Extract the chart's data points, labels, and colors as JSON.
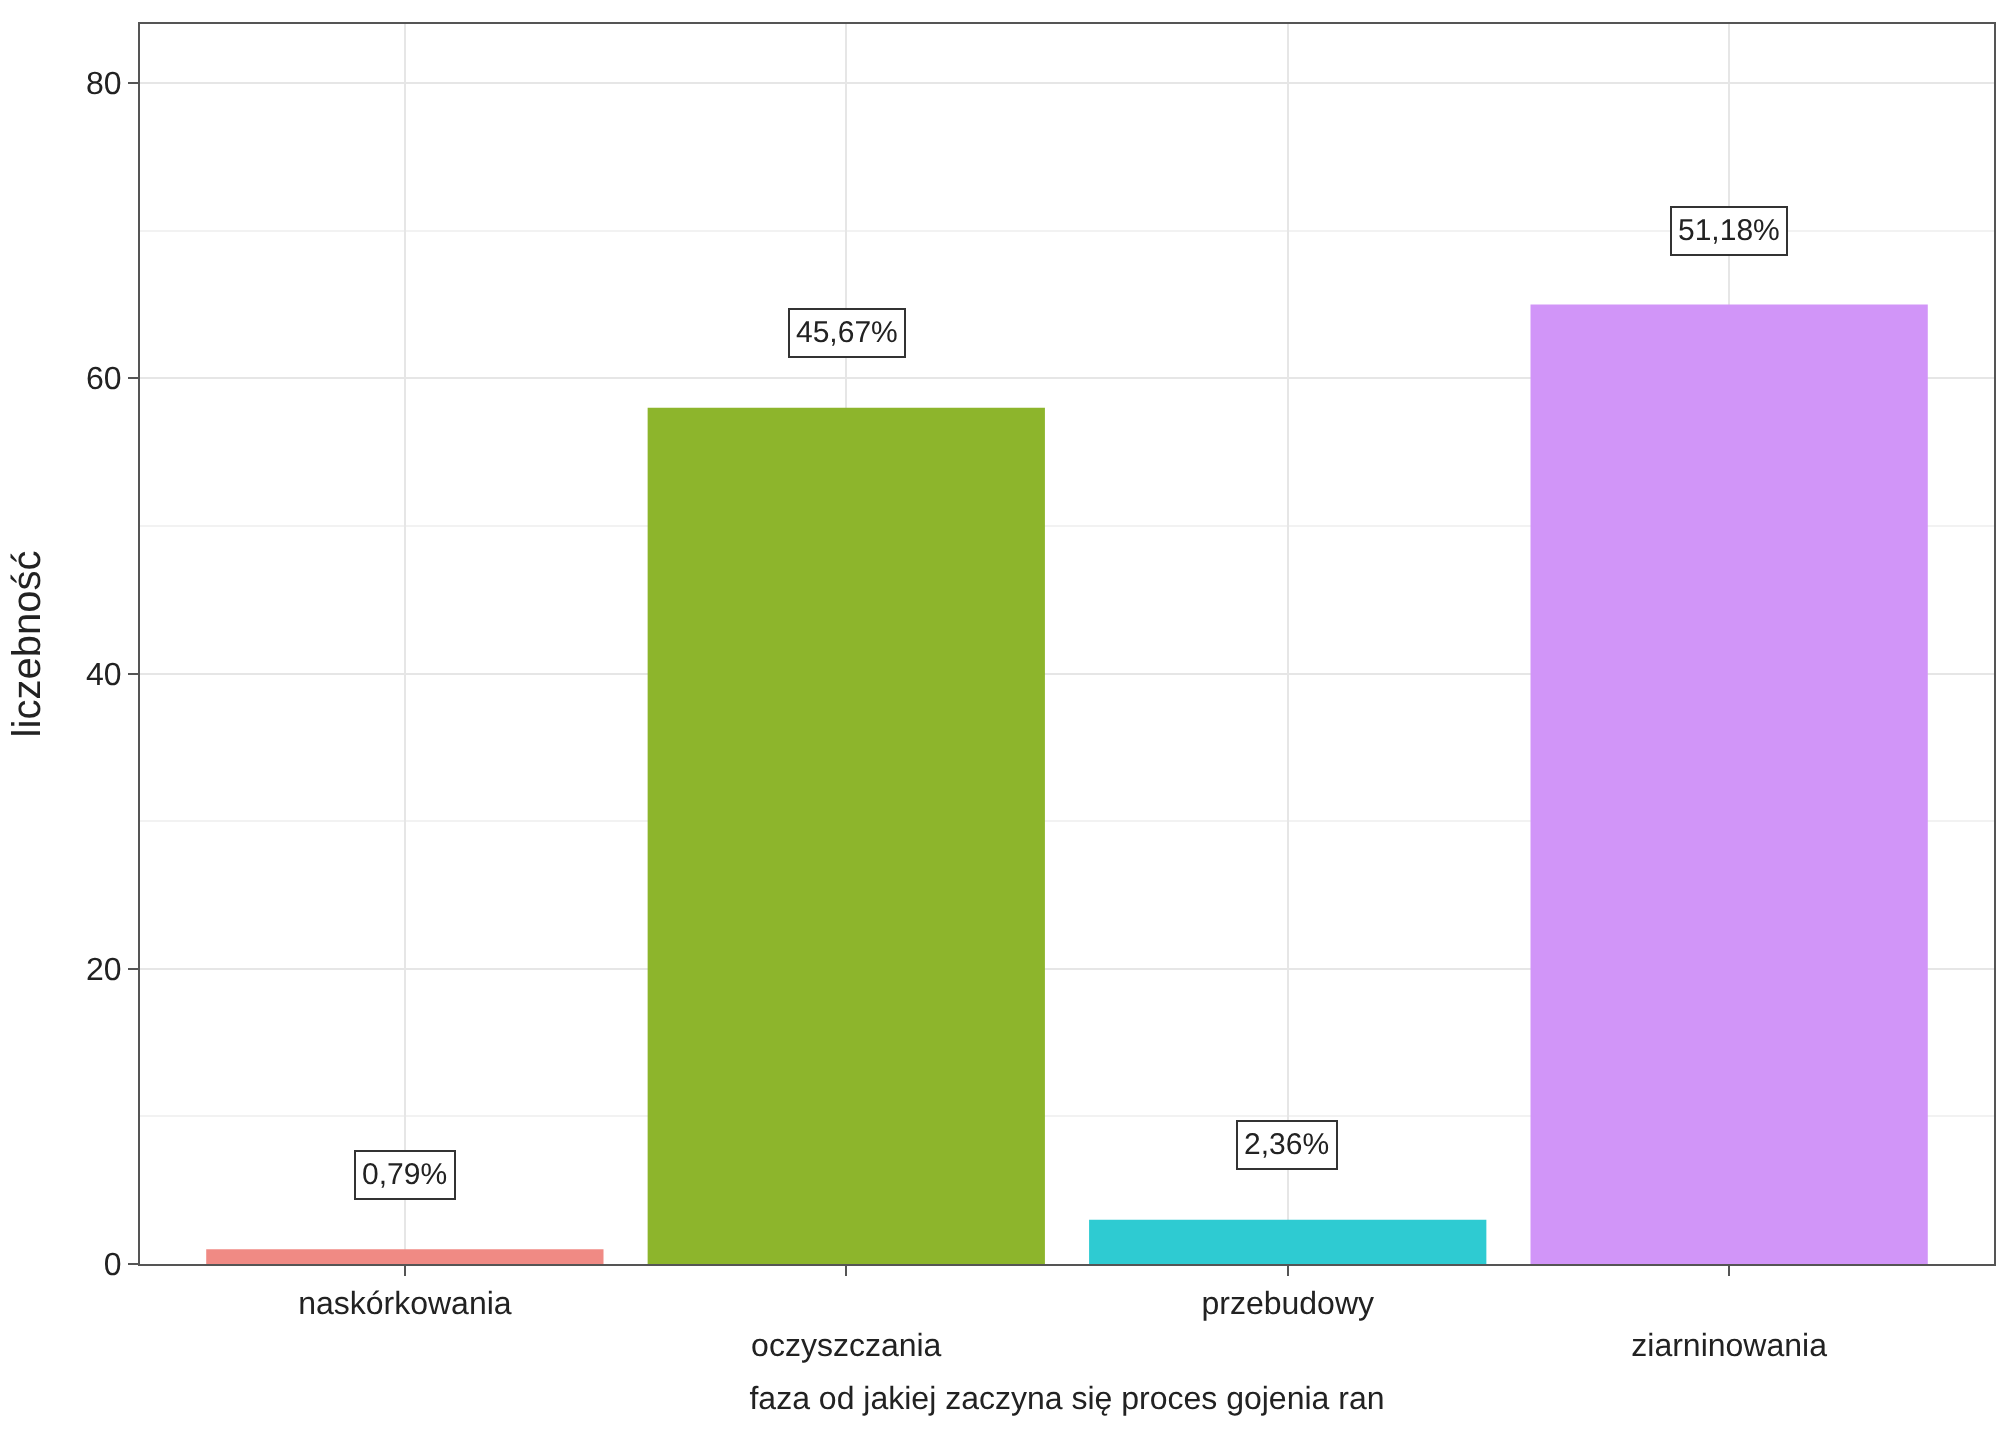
{
  "chart_data": {
    "type": "bar",
    "xlabel": "faza od jakiej zaczyna się proces gojenia ran",
    "ylabel": "liczebność",
    "categories": [
      "naskórkowania",
      "oczyszczania",
      "przebudowy",
      "ziarninowania"
    ],
    "values": [
      1,
      58,
      3,
      65
    ],
    "colors": [
      "#f08a84",
      "#8db52c",
      "#2ecbd2",
      "#d195f8"
    ],
    "annotations": [
      {
        "text": "0,79%",
        "x": "naskórkowania",
        "y": 1
      },
      {
        "text": "45,67%",
        "x": "oczyszczania",
        "y": 58
      },
      {
        "text": "2,36%",
        "x": "przebudowy",
        "y": 3
      },
      {
        "text": "51,18%",
        "x": "ziarninowania",
        "y": 65
      }
    ],
    "ylim": [
      0,
      84
    ],
    "yticks": [
      0,
      20,
      40,
      60,
      80
    ],
    "grid": true
  }
}
